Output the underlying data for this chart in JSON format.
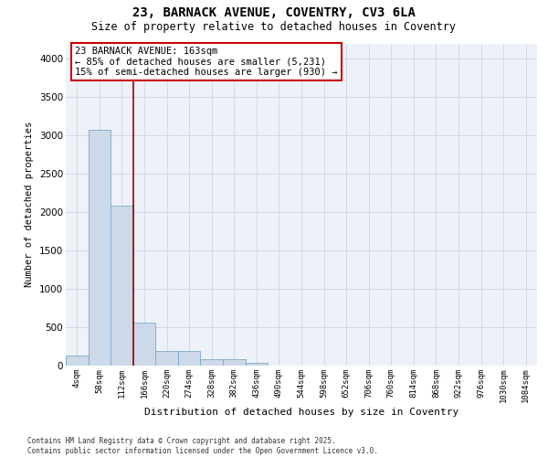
{
  "title_line1": "23, BARNACK AVENUE, COVENTRY, CV3 6LA",
  "title_line2": "Size of property relative to detached houses in Coventry",
  "xlabel": "Distribution of detached houses by size in Coventry",
  "ylabel": "Number of detached properties",
  "bar_color": "#ccd9e8",
  "bar_edge_color": "#7aaacc",
  "grid_color": "#d0d8e8",
  "bg_color": "#eef2f8",
  "annotation_box_color": "#cc0000",
  "vline_color": "#990000",
  "categories": [
    "4sqm",
    "58sqm",
    "112sqm",
    "166sqm",
    "220sqm",
    "274sqm",
    "328sqm",
    "382sqm",
    "436sqm",
    "490sqm",
    "544sqm",
    "598sqm",
    "652sqm",
    "706sqm",
    "760sqm",
    "814sqm",
    "868sqm",
    "922sqm",
    "976sqm",
    "1030sqm",
    "1084sqm"
  ],
  "values": [
    130,
    3080,
    2080,
    560,
    190,
    190,
    80,
    80,
    30,
    0,
    0,
    0,
    0,
    0,
    0,
    0,
    0,
    0,
    0,
    0,
    0
  ],
  "ylim": [
    0,
    4200
  ],
  "yticks": [
    0,
    500,
    1000,
    1500,
    2000,
    2500,
    3000,
    3500,
    4000
  ],
  "vline_x": 2.5,
  "annotation_text": "23 BARNACK AVENUE: 163sqm\n← 85% of detached houses are smaller (5,231)\n15% of semi-detached houses are larger (930) →",
  "footnote": "Contains HM Land Registry data © Crown copyright and database right 2025.\nContains public sector information licensed under the Open Government Licence v3.0."
}
